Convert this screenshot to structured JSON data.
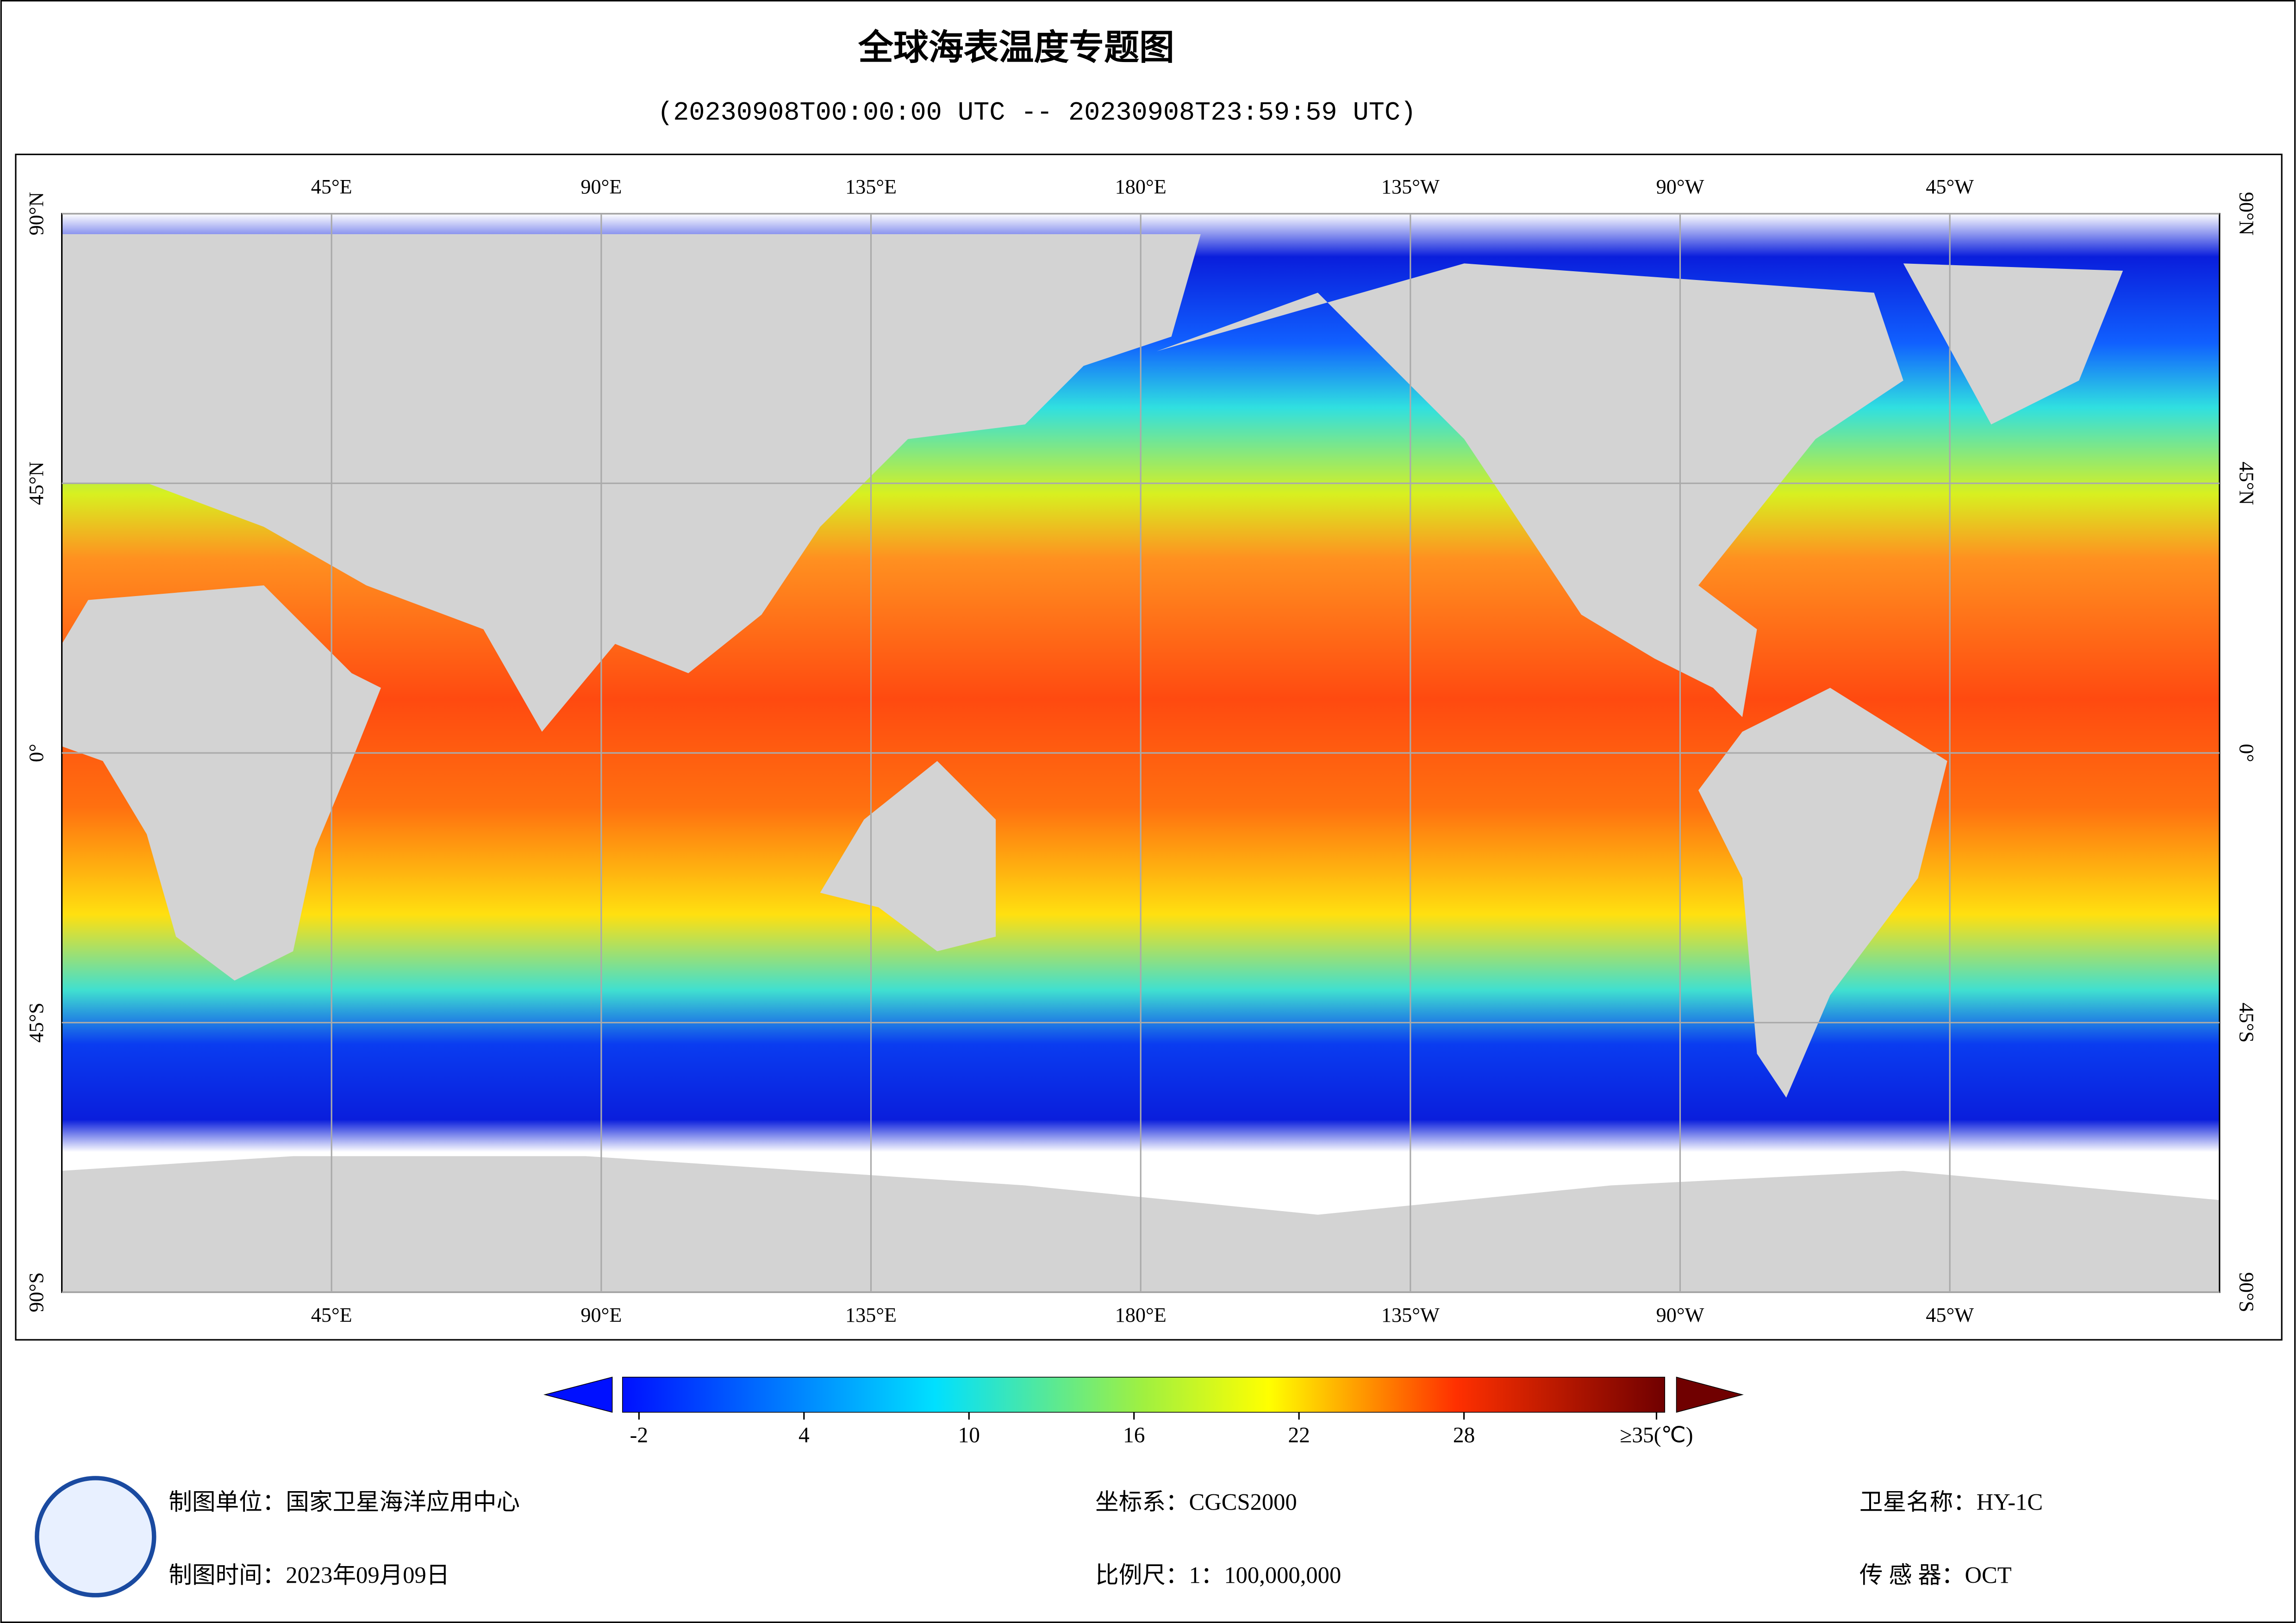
{
  "header": {
    "title": "全球海表温度专题图",
    "subtitle": "(20230908T00:00:00 UTC -- 20230908T23:59:59 UTC)"
  },
  "map": {
    "lon_range": [
      0,
      360
    ],
    "lat_range": [
      -90,
      90
    ],
    "lon_ticks": [
      {
        "value": 45,
        "label": "45°E"
      },
      {
        "value": 90,
        "label": "90°E"
      },
      {
        "value": 135,
        "label": "135°E"
      },
      {
        "value": 180,
        "label": "180°E"
      },
      {
        "value": 225,
        "label": "135°W"
      },
      {
        "value": 270,
        "label": "90°W"
      },
      {
        "value": 315,
        "label": "45°W"
      }
    ],
    "lat_ticks": [
      {
        "value": 90,
        "label": "90°N"
      },
      {
        "value": 45,
        "label": "45°N"
      },
      {
        "value": 0,
        "label": "0°"
      },
      {
        "value": -45,
        "label": "45°S"
      },
      {
        "value": -90,
        "label": "90°S"
      }
    ]
  },
  "colorbar": {
    "range": [
      -2.6,
      35.3
    ],
    "ticks": [
      -2,
      4,
      10,
      16,
      22,
      28,
      {
        "value": 35,
        "label": "≥35(℃)"
      }
    ]
  },
  "footer": {
    "unit": "制图单位：国家卫星海洋应用中心",
    "time": "制图时间：2023年09月09日",
    "crs": "坐标系：CGCS2000",
    "scale": "比例尺：1：100,000,000",
    "satellite": "卫星名称：HY-1C",
    "sensor": "传 感 器：OCT"
  }
}
